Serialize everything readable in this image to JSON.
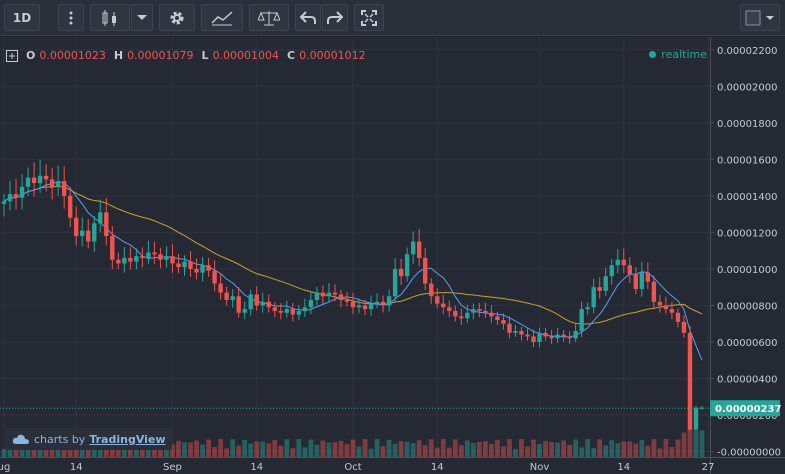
{
  "toolbar": {
    "interval": "1D",
    "buttons": [
      "more-vert-icon",
      "candles-icon",
      "chevron-down-icon",
      "gear-icon",
      "indicators-icon",
      "compare-icon",
      "undo-icon",
      "redo-icon",
      "fullscreen-icon"
    ],
    "right": [
      "color-square-icon",
      "chevron-down-icon"
    ]
  },
  "legend": {
    "o_label": "O",
    "o_value": "0.00001023",
    "h_label": "H",
    "h_value": "0.00001079",
    "l_label": "L",
    "l_value": "0.00001004",
    "c_label": "C",
    "c_value": "0.00001012"
  },
  "realtime_label": "realtime",
  "watermark": {
    "prefix": "charts by",
    "brand": "TradingView"
  },
  "colors": {
    "up": "#26a69a",
    "down": "#f05350",
    "ma_fast": "#5b9cf6",
    "ma_slow": "#c9a227",
    "last": "#26a69a"
  },
  "chart_data": {
    "type": "candlestick",
    "price_ticks": [
      "0.00002200",
      "0.00002000",
      "0.00001800",
      "0.00001600",
      "0.00001400",
      "0.00001200",
      "0.00001000",
      "0.00000800",
      "0.00000600",
      "0.00000400",
      "0.00000200",
      "-0.00000000"
    ],
    "price_tick_values": [
      2.2e-05,
      2e-05,
      1.8e-05,
      1.6e-05,
      1.4e-05,
      1.2e-05,
      1e-05,
      8e-06,
      6e-06,
      4e-06,
      2e-06,
      0
    ],
    "ylim": [
      -3e-07,
      2.27e-05
    ],
    "last_price_label": "0.00000237",
    "last_price": 2.37e-06,
    "time_ticks": [
      "ug",
      "14",
      "Sep",
      "14",
      "Oct",
      "14",
      "Nov",
      "14",
      "27"
    ],
    "time_tick_index": [
      0,
      12,
      28,
      42,
      58,
      72,
      89,
      103,
      117
    ],
    "bars": 117,
    "closes": [
      1.37e-05,
      1.41e-05,
      1.39e-05,
      1.45e-05,
      1.5e-05,
      1.47e-05,
      1.51e-05,
      1.49e-05,
      1.45e-05,
      1.48e-05,
      1.4e-05,
      1.28e-05,
      1.18e-05,
      1.21e-05,
      1.15e-05,
      1.25e-05,
      1.31e-05,
      1.18e-05,
      1.05e-05,
      1.03e-05,
      1.06e-05,
      1.04e-05,
      1.07e-05,
      1.06e-05,
      1.09e-05,
      1.08e-05,
      1.05e-05,
      1.07e-05,
      1.03e-05,
      1.01e-05,
      1.04e-05,
      1e-05,
      9.8e-06,
      1.02e-05,
      9.9e-06,
      9.2e-06,
      8.7e-06,
      8.3e-06,
      8.5e-06,
      7.6e-06,
      7.8e-06,
      8.6e-06,
      8e-06,
      8.2e-06,
      7.9e-06,
      7.7e-06,
      7.6e-06,
      7.8e-06,
      7.5e-06,
      7.7e-06,
      7.9e-06,
      8.3e-06,
      8.7e-06,
      8.5e-06,
      8.7e-06,
      8.6e-06,
      8.3e-06,
      8.2e-06,
      7.9e-06,
      8e-06,
      7.8e-06,
      8.1e-06,
      8.2e-06,
      8e-06,
      8.5e-06,
      1e-05,
      9.6e-06,
      1.08e-05,
      1.15e-05,
      1.06e-05,
      9.2e-06,
      8.5e-06,
      8.1e-06,
      7.9e-06,
      7.7e-06,
      7.4e-06,
      7.3e-06,
      7.6e-06,
      7.8e-06,
      7.7e-06,
      7.6e-06,
      7.4e-06,
      7.2e-06,
      7e-06,
      6.5e-06,
      6.6e-06,
      6.4e-06,
      6.3e-06,
      6e-06,
      6.5e-06,
      6.3e-06,
      6.2e-06,
      6.4e-06,
      6.3e-06,
      6.2e-06,
      6.6e-06,
      7.8e-06,
      7.9e-06,
      9e-06,
      8.8e-06,
      9.6e-06,
      1.02e-05,
      1.05e-05,
      1.02e-05,
      9.7e-06,
      8.9e-06,
      9.8e-06,
      9.3e-06,
      8.2e-06,
      8e-06,
      7.8e-06,
      7.6e-06,
      7.1e-06,
      6.5e-06,
      1.2e-06,
      2.4e-06,
      2.4e-06
    ],
    "volume_note": "volume bars along bottom"
  }
}
